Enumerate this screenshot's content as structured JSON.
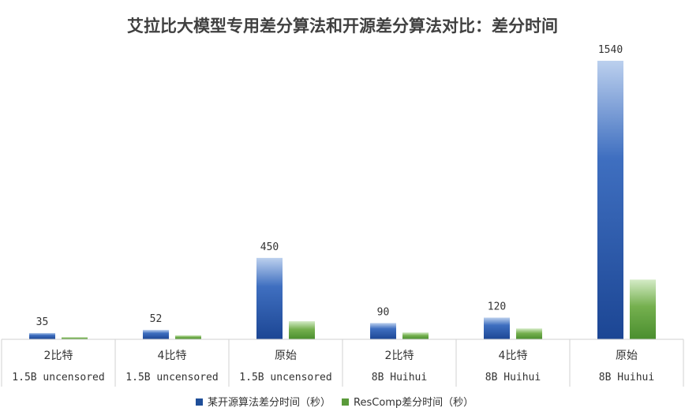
{
  "chart_data": {
    "type": "bar",
    "title": "艾拉比大模型专用差分算法和开源差分算法对比：差分时间",
    "xlabel": "",
    "ylabel": "",
    "ylim": [
      0,
      1540
    ],
    "grid": false,
    "legend_position": "bottom",
    "categories": [
      {
        "level1": "2比特",
        "level2": "1.5B uncensored"
      },
      {
        "level1": "4比特",
        "level2": "1.5B uncensored"
      },
      {
        "level1": "原始",
        "level2": "1.5B uncensored"
      },
      {
        "level1": "2比特",
        "level2": "8B Huihui"
      },
      {
        "level1": "4比特",
        "level2": "8B Huihui"
      },
      {
        "level1": "原始",
        "level2": "8B Huihui"
      }
    ],
    "series": [
      {
        "name": "某开源算法差分时间（秒）",
        "color": "#1f4e99",
        "values": [
          35,
          52,
          450,
          90,
          120,
          1540
        ],
        "labels": [
          "35",
          "52",
          "450",
          "90",
          "120",
          "1540"
        ]
      },
      {
        "name": "ResComp差分时间（秒）",
        "color": "#5a9a3a",
        "values": [
          12,
          22,
          100,
          38,
          60,
          330
        ],
        "labels": [
          null,
          null,
          null,
          null,
          null,
          null
        ]
      }
    ]
  }
}
